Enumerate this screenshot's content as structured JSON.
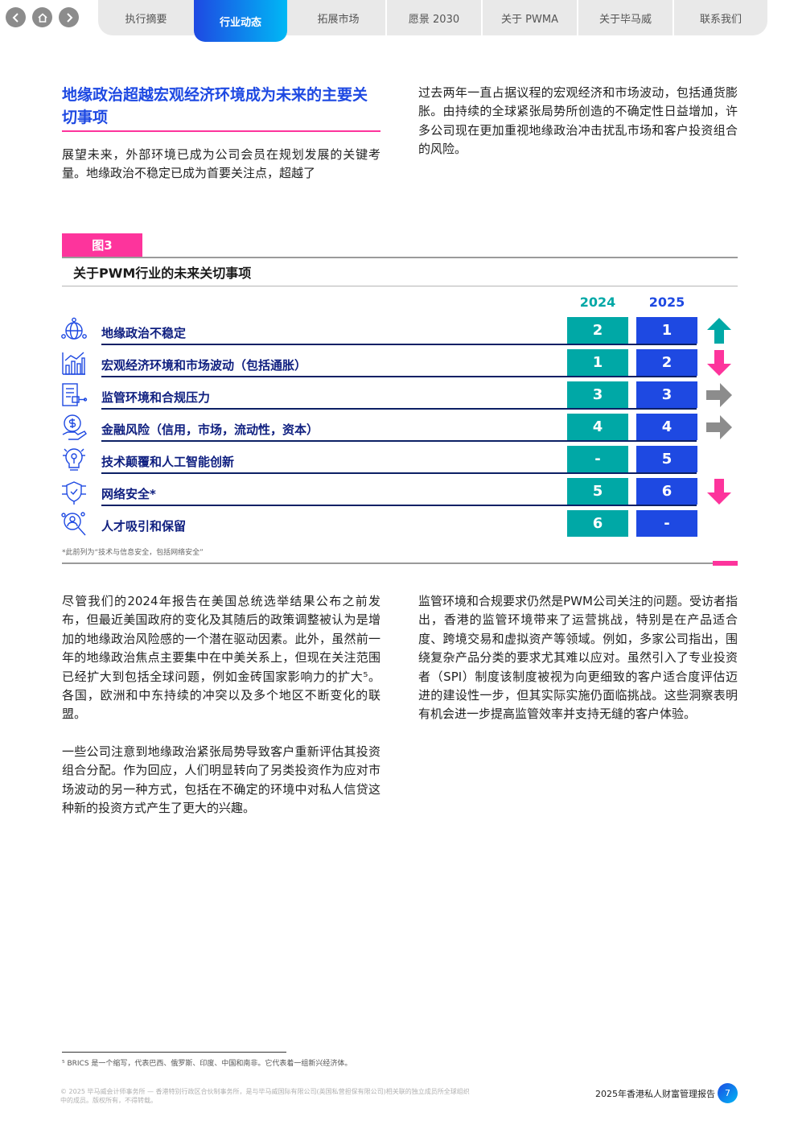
{
  "nav": {
    "tabs": [
      "执行摘要",
      "行业动态",
      "拓展市场",
      "愿景 2030",
      "关于 PWMA",
      "关于毕马威",
      "联系我们"
    ],
    "active_tab": "行业动态"
  },
  "section": {
    "heading": "地缘政治超越宏观经济环境成为未来的主要关切事项",
    "intro_left": "展望未来，外部环境已成为公司会员在规划发展的关键考量。地缘政治不稳定已成为首要关注点，超越了",
    "intro_right": "过去两年一直占据议程的宏观经济和市场波动，包括通货膨胀。由持续的全球紧张局势所创造的不确定性日益增加，许多公司现在更加重视地缘政治冲击扰乱市场和客户投资组合的风险。"
  },
  "figure": {
    "tag": "图3",
    "title": "关于PWM行业的未来关切事项",
    "years": [
      "2024",
      "2025"
    ],
    "rows": [
      {
        "icon": "globe-network-icon",
        "label": "地缘政治不稳定",
        "rank_2024": "2",
        "rank_2025": "1",
        "trend": "up"
      },
      {
        "icon": "bar-chart-icon",
        "label": "宏观经济环境和市场波动（包括通胀）",
        "rank_2024": "1",
        "rank_2025": "2",
        "trend": "down"
      },
      {
        "icon": "regulation-document-icon",
        "label": "监管环境和合规压力",
        "rank_2024": "3",
        "rank_2025": "3",
        "trend": "flat"
      },
      {
        "icon": "dollar-hand-icon",
        "label": "金融风险（信用，市场，流动性，资本）",
        "rank_2024": "4",
        "rank_2025": "4",
        "trend": "flat"
      },
      {
        "icon": "ai-lightbulb-icon",
        "label": "技术颠覆和人工智能创新",
        "rank_2024": "-",
        "rank_2025": "5",
        "trend": "none"
      },
      {
        "icon": "cyber-shield-icon",
        "label": "网络安全*",
        "rank_2024": "5",
        "rank_2025": "6",
        "trend": "down"
      },
      {
        "icon": "talent-search-icon",
        "label": "人才吸引和保留",
        "rank_2024": "6",
        "rank_2025": "-",
        "trend": "none"
      }
    ],
    "note": "*此前列为“技术与信息安全，包括网络安全”"
  },
  "body": {
    "left_p1": "尽管我们的2024年报告在美国总统选举结果公布之前发布，但最近美国政府的变化及其随后的政策调整被认为是增加的地缘政治风险感的一个潜在驱动因素。此外，虽然前一年的地缘政治焦点主要集中在中美关系上，但现在关注范围已经扩大到包括全球问题，例如金砖国家影响力的扩大⁵。各国，欧洲和中东持续的冲突以及多个地区不断变化的联盟。",
    "left_p2": "一些公司注意到地缘政治紧张局势导致客户重新评估其投资组合分配。作为回应，人们明显转向了另类投资作为应对市场波动的另一种方式，包括在不确定的环境中对私人信贷这种新的投资方式产生了更大的兴趣。",
    "right_p1": "监管环境和合规要求仍然是PWM公司关注的问题。受访者指出，香港的监管环境带来了运营挑战，特别是在产品适合度、跨境交易和虚拟资产等领域。例如，多家公司指出，围绕复杂产品分类的要求尤其难以应对。虽然引入了专业投资者（SPI）制度该制度被视为向更细致的客户适合度评估迈进的建设性一步，但其实际实施仍面临挑战。这些洞察表明有机会进一步提高监管效率并支持无缝的客户体验。"
  },
  "footer": {
    "footnote": "⁵ BRICS 是一个缩写，代表巴西、俄罗斯、印度、中国和南非。它代表着一组新兴经济体。",
    "copyright": "© 2025 毕马威会计师事务所 — 香港特别行政区合伙制事务所，是与毕马威国际有限公司(英国私营担保有限公司)相关联的独立成员所全球组织中的成员。版权所有，不得转载。",
    "report_title": "2025年香港私人财富管理报告",
    "page_number": "7"
  },
  "colors": {
    "accent_blue": "#1e49e2",
    "accent_teal": "#00a8a6",
    "accent_pink": "#fd349c",
    "arrow_up": "#00a8a6",
    "arrow_down": "#fd349c",
    "arrow_flat": "#8c8c8c"
  }
}
